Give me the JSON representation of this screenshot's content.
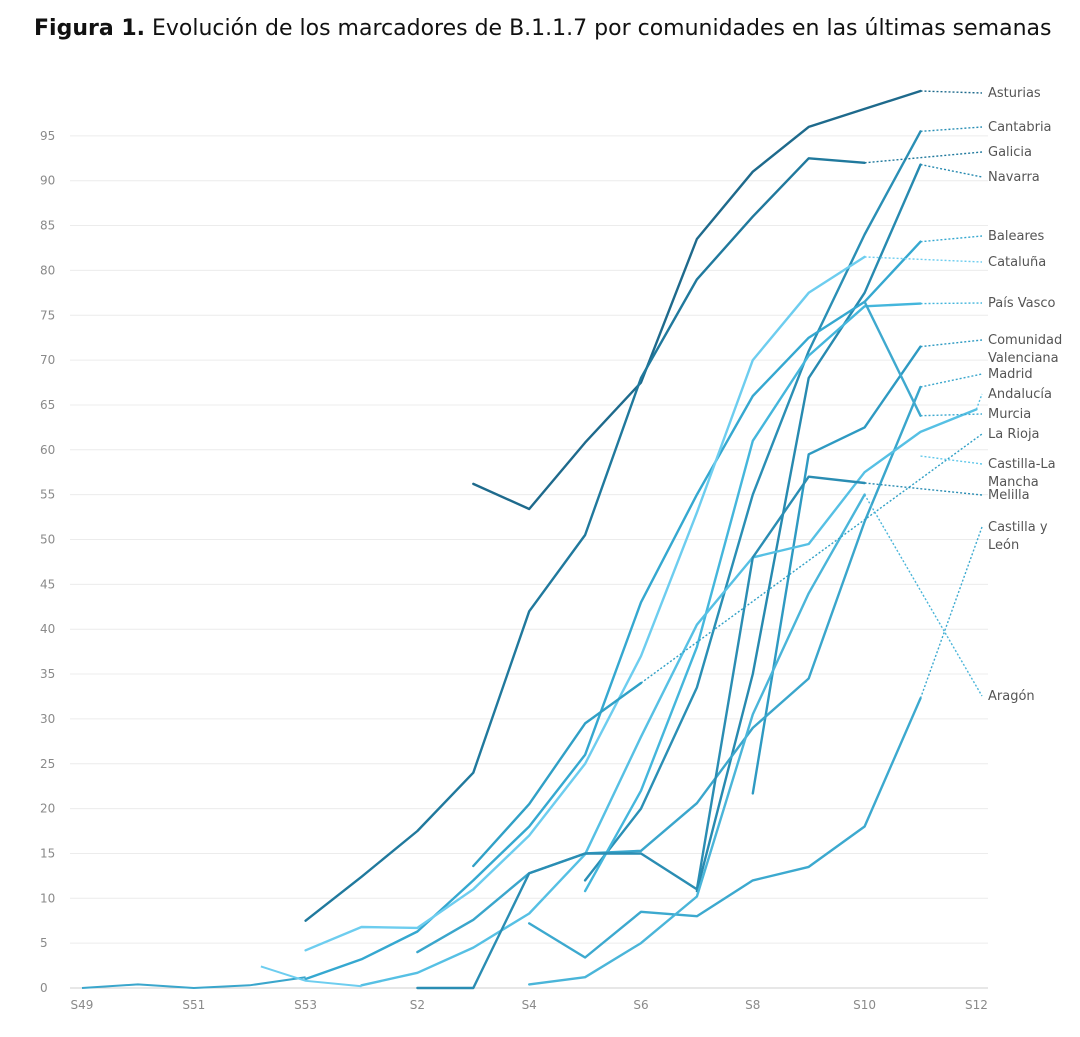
{
  "title": {
    "prefix": "Figura 1.",
    "text": "Evolución de los marcadores de B.1.1.7 por comunidades en las últimas semanas"
  },
  "chart_data": {
    "type": "line",
    "title": "Figura 1. Evolución de los marcadores de B.1.1.7 por comunidades en las últimas semanas",
    "xlabel": "",
    "ylabel": "",
    "x": [
      "S49",
      "S50",
      "S51",
      "S52",
      "S53",
      "S1",
      "S2",
      "S3",
      "S4",
      "S5",
      "S6",
      "S7",
      "S8",
      "S9",
      "S10",
      "S11",
      "S12"
    ],
    "x_ticks": [
      "S49",
      "S51",
      "S53",
      "S2",
      "S4",
      "S6",
      "S8",
      "S10",
      "S12"
    ],
    "y_ticks": [
      0,
      5,
      10,
      15,
      20,
      25,
      30,
      35,
      40,
      45,
      50,
      55,
      60,
      65,
      70,
      75,
      80,
      85,
      90,
      95
    ],
    "ylim": [
      0,
      100
    ],
    "grid": true,
    "series": [
      {
        "name": "Asturias",
        "color": "#1e6a8c",
        "values": [
          null,
          null,
          null,
          null,
          null,
          null,
          null,
          56.2,
          53.4,
          60.8,
          67.5,
          83.5,
          91,
          96,
          98,
          100,
          null
        ]
      },
      {
        "name": "Cantabria",
        "color": "#2a8fb5",
        "values": [
          null,
          null,
          null,
          null,
          null,
          null,
          null,
          null,
          null,
          12.0,
          20.0,
          33.5,
          55,
          71,
          84,
          95.5,
          null
        ]
      },
      {
        "name": "Galicia",
        "color": "#20799d",
        "values": [
          null,
          null,
          null,
          null,
          7.5,
          12.4,
          17.5,
          24,
          42,
          50.5,
          68,
          79,
          86,
          92.5,
          92,
          null,
          null
        ]
      },
      {
        "name": "Navarra",
        "color": "#278ab0",
        "values": [
          null,
          null,
          null,
          null,
          null,
          null,
          null,
          null,
          null,
          null,
          null,
          10.8,
          35,
          68,
          77.5,
          91.8,
          null
        ]
      },
      {
        "name": "Baleares",
        "color": "#35a8d0",
        "values": [
          null,
          null,
          null,
          null,
          1.0,
          3.2,
          6.3,
          12,
          18,
          26,
          43,
          55,
          66,
          72.5,
          76.5,
          83.2,
          null
        ]
      },
      {
        "name": "Cataluña",
        "color": "#6dcdef",
        "values": [
          null,
          null,
          null,
          null,
          4.2,
          6.8,
          6.7,
          11,
          17,
          25,
          37,
          53,
          70,
          77.5,
          81.5,
          null,
          null
        ]
      },
      {
        "name": "País Vasco",
        "color": "#44b6dc",
        "values": [
          null,
          null,
          null,
          null,
          null,
          null,
          null,
          null,
          null,
          10.8,
          22,
          38,
          61,
          70.5,
          76,
          76.3,
          null
        ]
      },
      {
        "name": "Comunidad Valenciana",
        "color": "#2e9ac2",
        "values": [
          null,
          null,
          null,
          null,
          null,
          null,
          null,
          null,
          null,
          null,
          null,
          null,
          21.7,
          59.5,
          62.5,
          71.5,
          null
        ]
      },
      {
        "name": "Madrid",
        "color": "#3aa6cc",
        "values": [
          null,
          null,
          null,
          null,
          null,
          null,
          4,
          7.6,
          12.8,
          15,
          15.3,
          20.6,
          29,
          34.5,
          52,
          67,
          null
        ]
      },
      {
        "name": "Andalucía",
        "color": "#56c0e4",
        "values": [
          null,
          null,
          null,
          null,
          null,
          0.3,
          1.7,
          4.5,
          8.3,
          14.9,
          28,
          40.5,
          48,
          49.5,
          57.5,
          62,
          64.5
        ]
      },
      {
        "name": "Murcia",
        "color": "#3fa9cf",
        "values": [
          null,
          null,
          null,
          null,
          null,
          null,
          null,
          null,
          null,
          null,
          null,
          null,
          null,
          null,
          76.5,
          63.8,
          null
        ]
      },
      {
        "name": "La Rioja",
        "color": "#30a0c6",
        "values": [
          null,
          null,
          null,
          null,
          null,
          null,
          null,
          13.6,
          20.5,
          29.5,
          34,
          null,
          null,
          null,
          null,
          null,
          null
        ]
      },
      {
        "name": "Castilla-La Mancha",
        "color": "#62c8ea",
        "values": [
          null,
          null,
          null,
          null,
          null,
          null,
          null,
          null,
          null,
          null,
          null,
          null,
          null,
          null,
          null,
          59.3,
          null
        ]
      },
      {
        "name": "Melilla",
        "color": "#2a8db3",
        "values": [
          null,
          null,
          null,
          null,
          null,
          null,
          0,
          0,
          12.8,
          15,
          15,
          11,
          48,
          57,
          56.3,
          null,
          null
        ]
      },
      {
        "name": "Castilla y León",
        "color": "#3ca9cf",
        "values": [
          null,
          null,
          null,
          null,
          null,
          null,
          null,
          null,
          7.2,
          3.4,
          8.5,
          8,
          12,
          13.5,
          18,
          32.3,
          null
        ]
      },
      {
        "name": "Aragón",
        "color": "#4ab5d9",
        "values": [
          null,
          null,
          null,
          null,
          null,
          null,
          null,
          null,
          0.4,
          1.2,
          5,
          10.2,
          30.5,
          44,
          55,
          null,
          null
        ]
      }
    ],
    "labels": [
      {
        "name": "Asturias",
        "lines": [
          "Asturias"
        ]
      },
      {
        "name": "Cantabria",
        "lines": [
          "Cantabria"
        ]
      },
      {
        "name": "Galicia",
        "lines": [
          "Galicia"
        ]
      },
      {
        "name": "Navarra",
        "lines": [
          "Navarra"
        ]
      },
      {
        "name": "Baleares",
        "lines": [
          "Baleares"
        ]
      },
      {
        "name": "Cataluña",
        "lines": [
          "Cataluña"
        ]
      },
      {
        "name": "País Vasco",
        "lines": [
          "País Vasco"
        ]
      },
      {
        "name": "Comunidad Valenciana",
        "lines": [
          "Comunidad",
          "Valenciana"
        ]
      },
      {
        "name": "Madrid",
        "lines": [
          "Madrid"
        ]
      },
      {
        "name": "Andalucía",
        "lines": [
          "Andalucía"
        ]
      },
      {
        "name": "Murcia",
        "lines": [
          "Murcia"
        ]
      },
      {
        "name": "La Rioja",
        "lines": [
          "La Rioja"
        ]
      },
      {
        "name": "Castilla-La Mancha",
        "lines": [
          "Castilla-La",
          "Mancha"
        ]
      },
      {
        "name": "Melilla",
        "lines": [
          "Melilla"
        ]
      },
      {
        "name": "Castilla y León",
        "lines": [
          "Castilla y",
          "León"
        ]
      },
      {
        "name": "Aragón",
        "lines": [
          "Aragón"
        ]
      }
    ]
  }
}
